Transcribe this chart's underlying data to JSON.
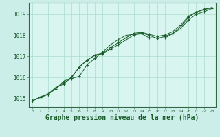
{
  "bg_color": "#cceee8",
  "plot_bg_color": "#d8f5f0",
  "grid_color": "#aaddcc",
  "line_color": "#1a5c2a",
  "xlabel": "Graphe pression niveau de la mer (hPa)",
  "xlabel_fontsize": 7,
  "xlim": [
    -0.5,
    23.5
  ],
  "ylim": [
    1014.6,
    1019.55
  ],
  "yticks": [
    1015,
    1016,
    1017,
    1018,
    1019
  ],
  "xticks": [
    0,
    1,
    2,
    3,
    4,
    5,
    6,
    7,
    8,
    9,
    10,
    11,
    12,
    13,
    14,
    15,
    16,
    17,
    18,
    19,
    20,
    21,
    22,
    23
  ],
  "line1": [
    1014.9,
    1015.05,
    1015.2,
    1015.5,
    1015.75,
    1015.95,
    1016.05,
    1016.6,
    1016.9,
    1017.2,
    1017.55,
    1017.8,
    1018.0,
    1018.05,
    1018.12,
    1018.0,
    1017.85,
    1017.95,
    1018.1,
    1018.4,
    1018.85,
    1019.1,
    1019.25,
    1019.32
  ],
  "line2": [
    1014.9,
    1015.05,
    1015.2,
    1015.45,
    1015.82,
    1015.98,
    1016.5,
    1016.82,
    1017.05,
    1017.15,
    1017.42,
    1017.65,
    1017.88,
    1018.1,
    1018.15,
    1018.05,
    1017.95,
    1018.02,
    1018.18,
    1018.48,
    1018.9,
    1019.1,
    1019.22,
    1019.32
  ],
  "line3": [
    1014.88,
    1015.08,
    1015.22,
    1015.52,
    1015.68,
    1016.02,
    1016.48,
    1016.82,
    1017.05,
    1017.12,
    1017.35,
    1017.55,
    1017.78,
    1018.02,
    1018.08,
    1017.88,
    1017.88,
    1017.88,
    1018.08,
    1018.32,
    1018.72,
    1019.0,
    1019.12,
    1019.28
  ]
}
